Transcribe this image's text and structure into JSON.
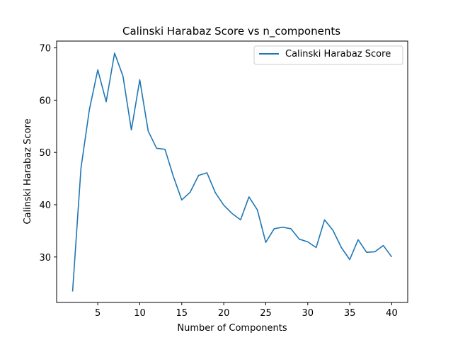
{
  "chart_data": {
    "type": "line",
    "title": "Calinski Harabaz Score vs n_components",
    "xlabel": "Number of Components",
    "ylabel": "Calinski Harabaz Score",
    "xlim": [
      0.1,
      41.9
    ],
    "ylim": [
      21.3,
      71.3
    ],
    "xticks": [
      5,
      10,
      15,
      20,
      25,
      30,
      35,
      40
    ],
    "yticks": [
      30,
      40,
      50,
      60,
      70
    ],
    "grid": false,
    "legend_position": "top-right",
    "series": [
      {
        "name": "Calinski Harabaz Score",
        "color": "#1f77b4",
        "x": [
          2,
          3,
          4,
          5,
          6,
          7,
          8,
          9,
          10,
          11,
          12,
          13,
          14,
          15,
          16,
          17,
          18,
          19,
          20,
          21,
          22,
          23,
          24,
          25,
          26,
          27,
          28,
          29,
          30,
          31,
          32,
          33,
          34,
          35,
          36,
          37,
          38,
          39,
          40
        ],
        "y": [
          23.4,
          47.0,
          58.2,
          65.8,
          59.7,
          69.0,
          64.6,
          54.3,
          63.9,
          54.1,
          50.8,
          50.6,
          45.4,
          40.9,
          42.4,
          45.6,
          46.1,
          42.3,
          39.9,
          38.3,
          37.1,
          41.5,
          39.0,
          32.8,
          35.4,
          35.7,
          35.4,
          33.4,
          32.9,
          31.8,
          37.1,
          35.1,
          31.8,
          29.5,
          33.3,
          30.9,
          31.0,
          32.2,
          30.0
        ]
      }
    ]
  }
}
